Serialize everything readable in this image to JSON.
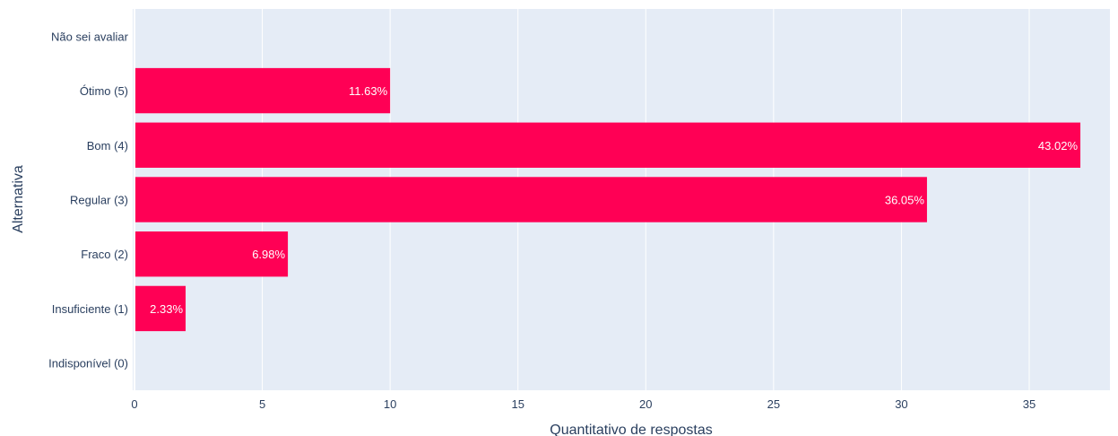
{
  "chart_data": {
    "type": "bar",
    "orientation": "horizontal",
    "categories": [
      "Não sei avaliar",
      "Ótimo (5)",
      "Bom (4)",
      "Regular (3)",
      "Fraco (2)",
      "Insuficiente (1)",
      "Indisponível (0)"
    ],
    "values": [
      0,
      10,
      37,
      31,
      6,
      2,
      0
    ],
    "bar_labels": [
      "",
      "11.63%",
      "43.02%",
      "36.05%",
      "6.98%",
      "2.33%",
      ""
    ],
    "xlabel": "Quantitativo de respostas",
    "ylabel": "Alternativa",
    "xlim": [
      0,
      38.5
    ],
    "x_ticks": [
      0,
      5,
      10,
      15,
      20,
      25,
      30,
      35
    ],
    "grid": true,
    "colors": {
      "bar": "#ff0055",
      "plot_background": "#e5ecf6",
      "grid": "#ffffff",
      "text": "#2a3f5f",
      "bar_text": "#ffffff"
    }
  }
}
